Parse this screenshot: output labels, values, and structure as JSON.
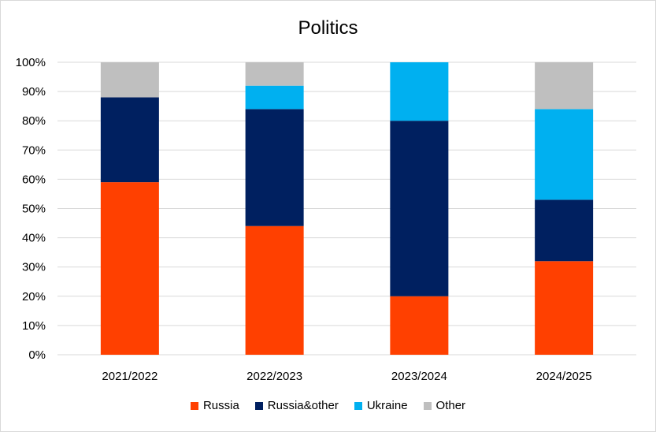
{
  "chart_data": {
    "type": "bar",
    "stacked": true,
    "title": "Politics",
    "categories": [
      "2021/2022",
      "2022/2023",
      "2023/2024",
      "2024/2025"
    ],
    "series": [
      {
        "name": "Russia",
        "color": "#ff4000",
        "values": [
          59,
          44,
          20,
          32
        ]
      },
      {
        "name": "Russia&other",
        "color": "#002060",
        "values": [
          29,
          40,
          60,
          21
        ]
      },
      {
        "name": "Ukraine",
        "color": "#00b0f0",
        "values": [
          0,
          8,
          20,
          31
        ]
      },
      {
        "name": "Other",
        "color": "#bfbfbf",
        "values": [
          12,
          8,
          0,
          16
        ]
      }
    ],
    "ylim": [
      0,
      100
    ],
    "yticks": [
      "0%",
      "10%",
      "20%",
      "30%",
      "40%",
      "50%",
      "60%",
      "70%",
      "80%",
      "90%",
      "100%"
    ],
    "grid": true,
    "legend": "bottom"
  }
}
